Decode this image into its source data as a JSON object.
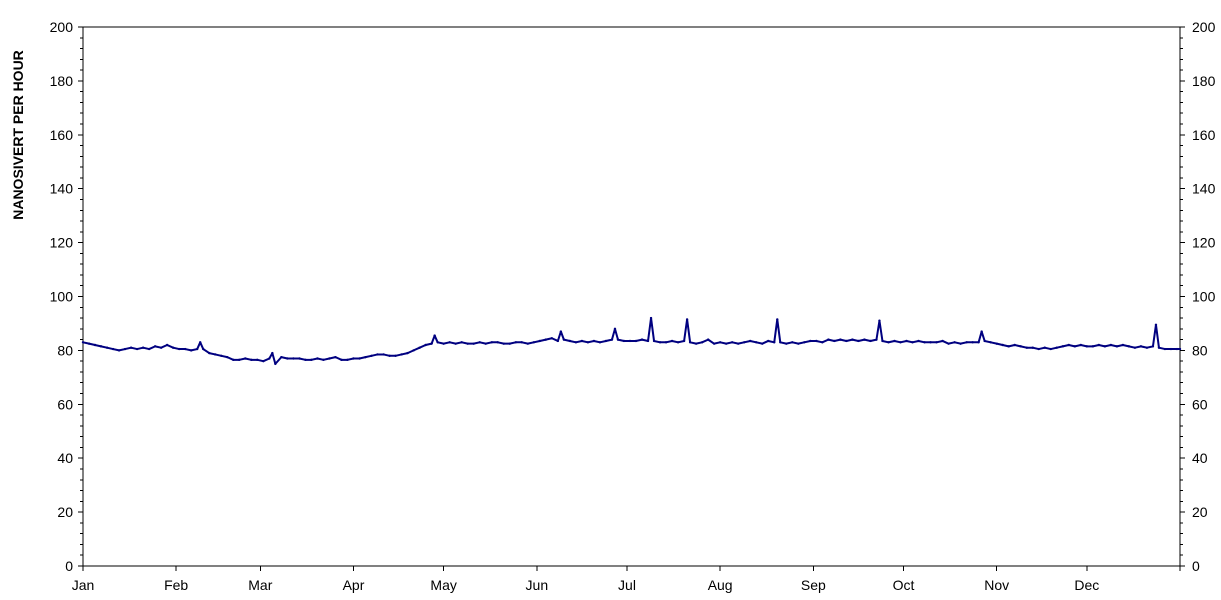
{
  "chart_data": {
    "type": "line",
    "title": "",
    "xlabel": "",
    "ylabel": "NANOSIVERT PER HOUR",
    "ylim": [
      0,
      200
    ],
    "yticks": [
      0,
      20,
      40,
      60,
      80,
      100,
      120,
      140,
      160,
      180,
      200
    ],
    "ytick_labels": [
      "0",
      "20",
      "40",
      "60",
      "80",
      "100",
      "120",
      "140",
      "160",
      "180",
      "200"
    ],
    "right_axis_duplicate": true,
    "xlim": [
      0,
      365
    ],
    "month_starts": [
      0,
      31,
      59,
      90,
      120,
      151,
      181,
      212,
      243,
      273,
      304,
      334
    ],
    "month_labels": [
      "Jan",
      "Feb",
      "Mar",
      "Apr",
      "May",
      "Jun",
      "Jul",
      "Aug",
      "Sep",
      "Oct",
      "Nov",
      "Dec"
    ],
    "grid": false,
    "legend": "none",
    "colors": {
      "series": "#000080",
      "axis": "#000000",
      "background": "#ffffff"
    },
    "series": [
      {
        "points": [
          [
            0,
            83
          ],
          [
            2,
            82.5
          ],
          [
            4,
            82
          ],
          [
            6,
            81.5
          ],
          [
            8,
            81
          ],
          [
            10,
            80.5
          ],
          [
            12,
            80
          ],
          [
            14,
            80.5
          ],
          [
            16,
            81
          ],
          [
            18,
            80.5
          ],
          [
            20,
            81
          ],
          [
            22,
            80.5
          ],
          [
            24,
            81.5
          ],
          [
            26,
            81
          ],
          [
            28,
            82
          ],
          [
            30,
            81
          ],
          [
            32,
            80.5
          ],
          [
            34,
            80.5
          ],
          [
            36,
            80
          ],
          [
            38,
            80.5
          ],
          [
            39,
            83
          ],
          [
            40,
            80.5
          ],
          [
            42,
            79
          ],
          [
            44,
            78.5
          ],
          [
            46,
            78
          ],
          [
            48,
            77.5
          ],
          [
            50,
            76.5
          ],
          [
            52,
            76.5
          ],
          [
            54,
            77
          ],
          [
            56,
            76.5
          ],
          [
            58,
            76.5
          ],
          [
            60,
            76
          ],
          [
            62,
            77
          ],
          [
            63,
            79
          ],
          [
            64,
            75
          ],
          [
            66,
            77.5
          ],
          [
            68,
            77
          ],
          [
            70,
            77
          ],
          [
            72,
            77
          ],
          [
            74,
            76.5
          ],
          [
            76,
            76.5
          ],
          [
            78,
            77
          ],
          [
            80,
            76.5
          ],
          [
            82,
            77
          ],
          [
            84,
            77.5
          ],
          [
            86,
            76.5
          ],
          [
            88,
            76.5
          ],
          [
            90,
            77
          ],
          [
            92,
            77
          ],
          [
            94,
            77.5
          ],
          [
            96,
            78
          ],
          [
            98,
            78.5
          ],
          [
            100,
            78.5
          ],
          [
            102,
            78
          ],
          [
            104,
            78
          ],
          [
            106,
            78.5
          ],
          [
            108,
            79
          ],
          [
            110,
            80
          ],
          [
            112,
            81
          ],
          [
            114,
            82
          ],
          [
            116,
            82.5
          ],
          [
            117,
            85.5
          ],
          [
            118,
            83
          ],
          [
            120,
            82.5
          ],
          [
            122,
            83
          ],
          [
            124,
            82.5
          ],
          [
            126,
            83
          ],
          [
            128,
            82.5
          ],
          [
            130,
            82.5
          ],
          [
            132,
            83
          ],
          [
            134,
            82.5
          ],
          [
            136,
            83
          ],
          [
            138,
            83
          ],
          [
            140,
            82.5
          ],
          [
            142,
            82.5
          ],
          [
            144,
            83
          ],
          [
            146,
            83
          ],
          [
            148,
            82.5
          ],
          [
            150,
            83
          ],
          [
            152,
            83.5
          ],
          [
            154,
            84
          ],
          [
            156,
            84.5
          ],
          [
            158,
            83.5
          ],
          [
            159,
            87
          ],
          [
            160,
            84
          ],
          [
            162,
            83.5
          ],
          [
            164,
            83
          ],
          [
            166,
            83.5
          ],
          [
            168,
            83
          ],
          [
            170,
            83.5
          ],
          [
            172,
            83
          ],
          [
            174,
            83.5
          ],
          [
            176,
            84
          ],
          [
            177,
            88
          ],
          [
            178,
            84
          ],
          [
            180,
            83.5
          ],
          [
            182,
            83.5
          ],
          [
            184,
            83.5
          ],
          [
            186,
            84
          ],
          [
            188,
            83.5
          ],
          [
            189,
            92
          ],
          [
            190,
            83.5
          ],
          [
            192,
            83
          ],
          [
            194,
            83
          ],
          [
            196,
            83.5
          ],
          [
            198,
            83
          ],
          [
            200,
            83.5
          ],
          [
            201,
            91.5
          ],
          [
            202,
            83
          ],
          [
            204,
            82.5
          ],
          [
            206,
            83
          ],
          [
            208,
            84
          ],
          [
            210,
            82.5
          ],
          [
            212,
            83
          ],
          [
            214,
            82.5
          ],
          [
            216,
            83
          ],
          [
            218,
            82.5
          ],
          [
            220,
            83
          ],
          [
            222,
            83.5
          ],
          [
            224,
            83
          ],
          [
            226,
            82.5
          ],
          [
            228,
            83.5
          ],
          [
            230,
            83
          ],
          [
            231,
            91.5
          ],
          [
            232,
            83
          ],
          [
            234,
            82.5
          ],
          [
            236,
            83
          ],
          [
            238,
            82.5
          ],
          [
            240,
            83
          ],
          [
            242,
            83.5
          ],
          [
            244,
            83.5
          ],
          [
            246,
            83
          ],
          [
            248,
            84
          ],
          [
            250,
            83.5
          ],
          [
            252,
            84
          ],
          [
            254,
            83.5
          ],
          [
            256,
            84
          ],
          [
            258,
            83.5
          ],
          [
            260,
            84
          ],
          [
            262,
            83.5
          ],
          [
            264,
            84
          ],
          [
            265,
            91
          ],
          [
            266,
            83.5
          ],
          [
            268,
            83
          ],
          [
            270,
            83.5
          ],
          [
            272,
            83
          ],
          [
            274,
            83.5
          ],
          [
            276,
            83
          ],
          [
            278,
            83.5
          ],
          [
            280,
            83
          ],
          [
            282,
            83
          ],
          [
            284,
            83
          ],
          [
            286,
            83.5
          ],
          [
            288,
            82.5
          ],
          [
            290,
            83
          ],
          [
            292,
            82.5
          ],
          [
            294,
            83
          ],
          [
            296,
            83
          ],
          [
            298,
            83
          ],
          [
            299,
            87
          ],
          [
            300,
            83.5
          ],
          [
            302,
            83
          ],
          [
            304,
            82.5
          ],
          [
            306,
            82
          ],
          [
            308,
            81.5
          ],
          [
            310,
            82
          ],
          [
            312,
            81.5
          ],
          [
            314,
            81
          ],
          [
            316,
            81
          ],
          [
            318,
            80.5
          ],
          [
            320,
            81
          ],
          [
            322,
            80.5
          ],
          [
            324,
            81
          ],
          [
            326,
            81.5
          ],
          [
            328,
            82
          ],
          [
            330,
            81.5
          ],
          [
            332,
            82
          ],
          [
            334,
            81.5
          ],
          [
            336,
            81.5
          ],
          [
            338,
            82
          ],
          [
            340,
            81.5
          ],
          [
            342,
            82
          ],
          [
            344,
            81.5
          ],
          [
            346,
            82
          ],
          [
            348,
            81.5
          ],
          [
            350,
            81
          ],
          [
            352,
            81.5
          ],
          [
            354,
            81
          ],
          [
            356,
            81.5
          ],
          [
            357,
            89.5
          ],
          [
            358,
            81
          ],
          [
            360,
            80.5
          ],
          [
            362,
            80.5
          ],
          [
            364,
            80.5
          ],
          [
            365,
            80.5
          ]
        ]
      }
    ]
  }
}
